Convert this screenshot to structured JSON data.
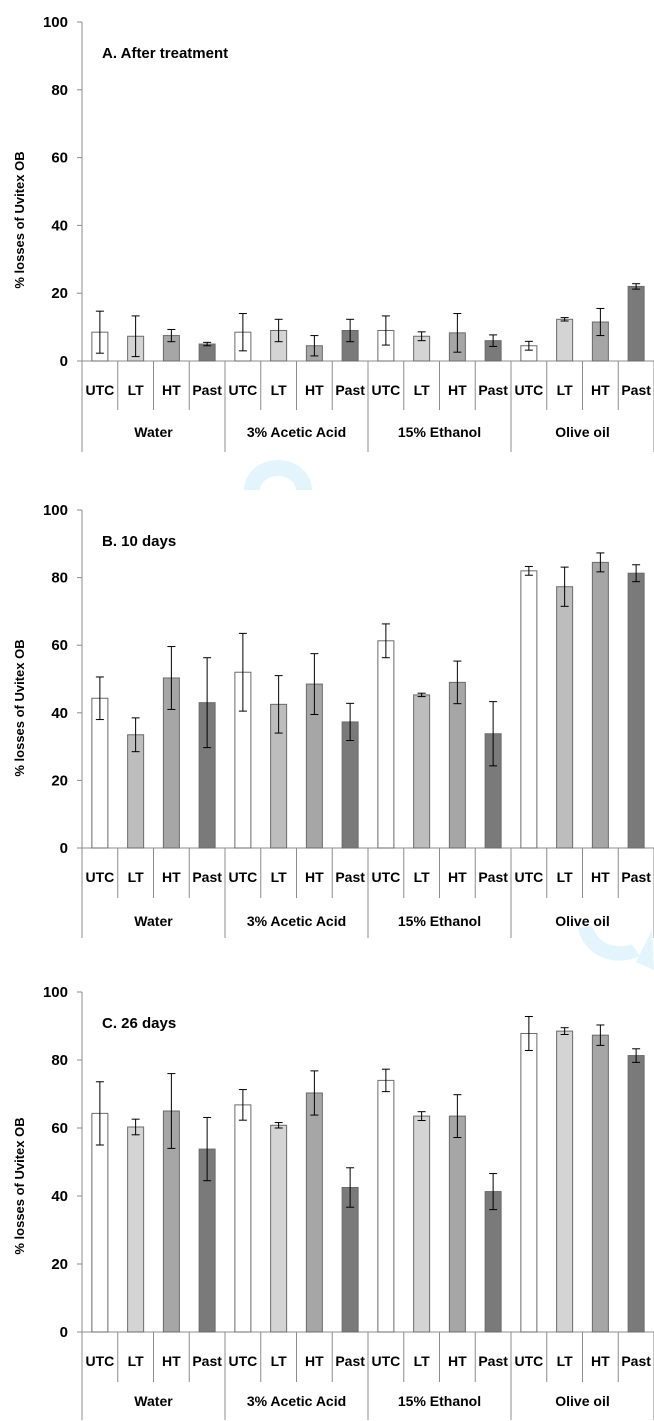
{
  "chart_data": [
    {
      "type": "bar",
      "title": "A. After treatment",
      "ylabel": "% losses of Uvitex OB",
      "ylim": [
        0,
        100
      ],
      "yticks": [
        0,
        20,
        40,
        60,
        80,
        100
      ],
      "groups": [
        "Water",
        "3% Acetic Acid",
        "15% Ethanol",
        "Olive oil"
      ],
      "categories": [
        "UTC",
        "LT",
        "HT",
        "Past"
      ],
      "colors": {
        "UTC": "#ffffff",
        "LT": "#d4d4d4",
        "HT": "#a6a6a6",
        "Past": "#7a7a7a"
      },
      "series": [
        {
          "group": "Water",
          "values": [
            8.5,
            7.3,
            7.5,
            5.0
          ],
          "errors": [
            6.2,
            6.0,
            1.8,
            0.5
          ]
        },
        {
          "group": "3% Acetic Acid",
          "values": [
            8.5,
            9.0,
            4.5,
            9.0
          ],
          "errors": [
            5.5,
            3.3,
            3.0,
            3.3
          ]
        },
        {
          "group": "15% Ethanol",
          "values": [
            9.0,
            7.3,
            8.3,
            6.0
          ],
          "errors": [
            4.3,
            1.3,
            5.7,
            1.7
          ]
        },
        {
          "group": "Olive oil",
          "values": [
            4.5,
            12.3,
            11.5,
            22.0
          ],
          "errors": [
            1.3,
            0.5,
            4.0,
            0.8
          ]
        }
      ]
    },
    {
      "type": "bar",
      "title": "B. 10 days",
      "ylabel": "% losses of Uvitex OB",
      "ylim": [
        0,
        100
      ],
      "yticks": [
        0,
        20,
        40,
        60,
        80,
        100
      ],
      "groups": [
        "Water",
        "3% Acetic Acid",
        "15% Ethanol",
        "Olive oil"
      ],
      "categories": [
        "UTC",
        "LT",
        "HT",
        "Past"
      ],
      "colors": {
        "UTC": "#ffffff",
        "LT": "#bdbdbd",
        "HT": "#a6a6a6",
        "Past": "#7a7a7a"
      },
      "series": [
        {
          "group": "Water",
          "values": [
            44.3,
            33.5,
            50.3,
            43.0
          ],
          "errors": [
            6.3,
            5.0,
            9.3,
            13.3
          ]
        },
        {
          "group": "3% Acetic Acid",
          "values": [
            52.0,
            42.5,
            48.5,
            37.3
          ],
          "errors": [
            11.5,
            8.5,
            9.0,
            5.5
          ]
        },
        {
          "group": "15% Ethanol",
          "values": [
            61.3,
            45.3,
            49.0,
            33.8
          ],
          "errors": [
            5.0,
            0.5,
            6.3,
            9.5
          ]
        },
        {
          "group": "Olive oil",
          "values": [
            82.0,
            77.3,
            84.5,
            81.3
          ],
          "errors": [
            1.3,
            5.8,
            2.8,
            2.5
          ]
        }
      ]
    },
    {
      "type": "bar",
      "title": "C. 26 days",
      "ylabel": "% losses of Uvitex OB",
      "ylim": [
        0,
        100
      ],
      "yticks": [
        0,
        20,
        40,
        60,
        80,
        100
      ],
      "groups": [
        "Water",
        "3% Acetic Acid",
        "15% Ethanol",
        "Olive oil"
      ],
      "categories": [
        "UTC",
        "LT",
        "HT",
        "Past"
      ],
      "colors": {
        "UTC": "#ffffff",
        "LT": "#d4d4d4",
        "HT": "#a6a6a6",
        "Past": "#7a7a7a"
      },
      "series": [
        {
          "group": "Water",
          "values": [
            64.3,
            60.3,
            65.0,
            53.8
          ],
          "errors": [
            9.3,
            2.3,
            11.0,
            9.3
          ]
        },
        {
          "group": "3% Acetic Acid",
          "values": [
            66.8,
            60.8,
            70.3,
            42.5
          ],
          "errors": [
            4.5,
            0.8,
            6.5,
            5.8
          ]
        },
        {
          "group": "15% Ethanol",
          "values": [
            74.0,
            63.5,
            63.5,
            41.3
          ],
          "errors": [
            3.3,
            1.3,
            6.3,
            5.3
          ]
        },
        {
          "group": "Olive oil",
          "values": [
            87.8,
            88.5,
            87.3,
            81.3
          ],
          "errors": [
            5.0,
            1.0,
            3.0,
            2.0
          ]
        }
      ]
    }
  ]
}
